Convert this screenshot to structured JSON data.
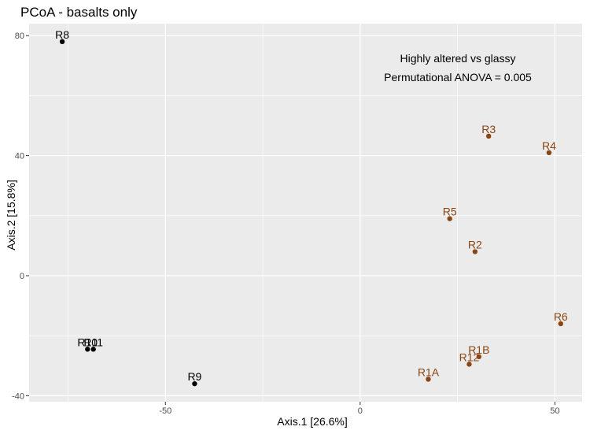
{
  "chart_data": {
    "type": "scatter",
    "title": "PCoA - basalts only",
    "xlabel": "Axis.1   [26.6%]",
    "ylabel": "Axis.2   [15.8%]",
    "xlim": [
      -85,
      57
    ],
    "ylim": [
      -42,
      84
    ],
    "x_ticks": [
      -50,
      0,
      50
    ],
    "y_ticks": [
      -40,
      0,
      40,
      80
    ],
    "grid": true,
    "legend": "none",
    "annotations": [
      "Highly altered vs glassy",
      "Permutational ANOVA = 0.005"
    ],
    "colors": {
      "black": "#000000",
      "brown": "#8B4513",
      "panel": "#EBEBEB",
      "grid": "#FFFFFF"
    },
    "points": [
      {
        "label": "R8",
        "x": -76.5,
        "y": 78.0,
        "color": "black"
      },
      {
        "label": "R10",
        "x": -70.0,
        "y": -24.5,
        "color": "black"
      },
      {
        "label": "R11",
        "x": -68.5,
        "y": -24.5,
        "color": "black"
      },
      {
        "label": "R9",
        "x": -42.5,
        "y": -36.0,
        "color": "black"
      },
      {
        "label": "R3",
        "x": 33.0,
        "y": 46.5,
        "color": "brown"
      },
      {
        "label": "R4",
        "x": 48.5,
        "y": 41.0,
        "color": "brown"
      },
      {
        "label": "R5",
        "x": 23.0,
        "y": 19.0,
        "color": "brown"
      },
      {
        "label": "R2",
        "x": 29.5,
        "y": 8.0,
        "color": "brown"
      },
      {
        "label": "R6",
        "x": 51.5,
        "y": -16.0,
        "color": "brown"
      },
      {
        "label": "R1B",
        "x": 30.5,
        "y": -27.0,
        "color": "brown"
      },
      {
        "label": "R12",
        "x": 28.0,
        "y": -29.5,
        "color": "brown"
      },
      {
        "label": "R1A",
        "x": 17.5,
        "y": -34.5,
        "color": "brown"
      }
    ]
  }
}
